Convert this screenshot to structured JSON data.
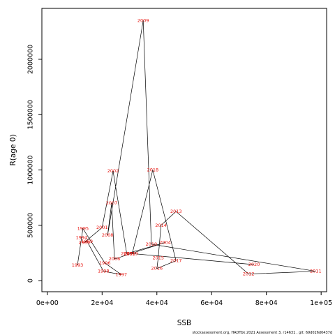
{
  "chart_data": {
    "type": "line",
    "xlabel": "SSB",
    "ylabel": "R(age 0)",
    "xlim": [
      -2000,
      102000
    ],
    "ylim": [
      -100000,
      2460000
    ],
    "x_ticks": [
      {
        "value": 0,
        "label": "0e+00"
      },
      {
        "value": 20000,
        "label": "2e+04"
      },
      {
        "value": 40000,
        "label": "4e+04"
      },
      {
        "value": 60000,
        "label": "6e+04"
      },
      {
        "value": 80000,
        "label": "8e+04"
      },
      {
        "value": 100000,
        "label": "1e+05"
      }
    ],
    "y_ticks": [
      {
        "value": 0,
        "label": "0"
      },
      {
        "value": 500000,
        "label": "500000"
      },
      {
        "value": 1000000,
        "label": "1000000"
      },
      {
        "value": 1500000,
        "label": "1500000"
      },
      {
        "value": 2000000,
        "label": "2000000"
      }
    ],
    "points": [
      {
        "year": "1993",
        "x": 11000,
        "y": 140000
      },
      {
        "year": "1994",
        "x": 12500,
        "y": 390000
      },
      {
        "year": "1995",
        "x": 13000,
        "y": 470000
      },
      {
        "year": "1996",
        "x": 21000,
        "y": 160000
      },
      {
        "year": "1997",
        "x": 27000,
        "y": 55000
      },
      {
        "year": "1998",
        "x": 20500,
        "y": 85000
      },
      {
        "year": "1999",
        "x": 14500,
        "y": 355000
      },
      {
        "year": "2000",
        "x": 13500,
        "y": 345000
      },
      {
        "year": "2001",
        "x": 20000,
        "y": 480000
      },
      {
        "year": "2002",
        "x": 24000,
        "y": 990000
      },
      {
        "year": "2003",
        "x": 29000,
        "y": 245000
      },
      {
        "year": "2004",
        "x": 43000,
        "y": 345000
      },
      {
        "year": "2005",
        "x": 30000,
        "y": 240000
      },
      {
        "year": "2006",
        "x": 24500,
        "y": 195000
      },
      {
        "year": "2007",
        "x": 23500,
        "y": 700000
      },
      {
        "year": "2008",
        "x": 22000,
        "y": 410000
      },
      {
        "year": "2009",
        "x": 35000,
        "y": 2350000
      },
      {
        "year": "2010",
        "x": 38000,
        "y": 330000
      },
      {
        "year": "2011",
        "x": 98000,
        "y": 85000
      },
      {
        "year": "2012",
        "x": 73500,
        "y": 60000
      },
      {
        "year": "2013",
        "x": 47000,
        "y": 625000
      },
      {
        "year": "2014",
        "x": 41500,
        "y": 500000
      },
      {
        "year": "2015",
        "x": 40500,
        "y": 205000
      },
      {
        "year": "2016",
        "x": 40000,
        "y": 110000
      },
      {
        "year": "2017",
        "x": 47000,
        "y": 180000
      },
      {
        "year": "2018",
        "x": 38500,
        "y": 1000000
      },
      {
        "year": "2019",
        "x": 31000,
        "y": 245000
      },
      {
        "year": "2020",
        "x": 75500,
        "y": 145000
      }
    ],
    "grid": false
  },
  "footer_text": "stockassessment.org,  HADTbk  2021  Assessment  3,  r14631  ,  git:  69d026d0437d"
}
